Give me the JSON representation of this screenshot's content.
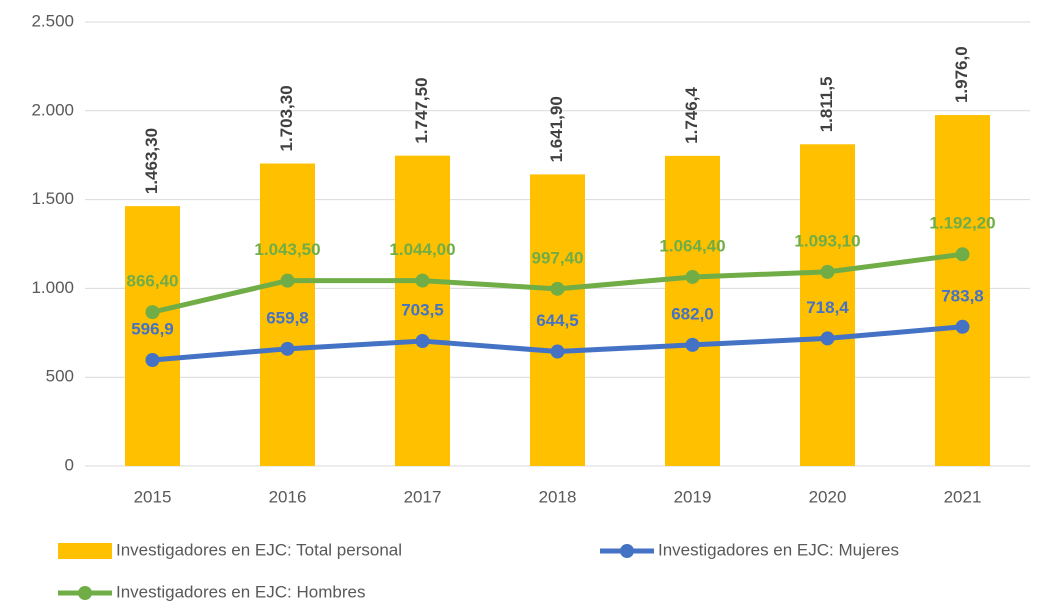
{
  "chart_data": {
    "type": "bar",
    "categories": [
      "2015",
      "2016",
      "2017",
      "2018",
      "2019",
      "2020",
      "2021"
    ],
    "series": [
      {
        "name": "Investigadores en EJC: Total personal",
        "type": "bar",
        "color": "#ffc000",
        "label_color": "#404040",
        "values": [
          1463.3,
          1703.3,
          1747.5,
          1641.9,
          1746.4,
          1811.5,
          1976.0
        ],
        "value_labels": [
          "1.463,30",
          "1.703,30",
          "1.747,50",
          "1.641,90",
          "1.746,4",
          "1.811,5",
          "1.976,0"
        ]
      },
      {
        "name": "Investigadores en EJC: Mujeres",
        "type": "line",
        "color": "#4472c4",
        "label_color": "#4472c4",
        "values": [
          596.9,
          659.8,
          703.5,
          644.5,
          682.0,
          718.4,
          783.8
        ],
        "value_labels": [
          "596,9",
          "659,8",
          "703,5",
          "644,5",
          "682,0",
          "718,4",
          "783,8"
        ]
      },
      {
        "name": "Investigadores en EJC: Hombres",
        "type": "line",
        "color": "#70ad47",
        "label_color": "#70ad47",
        "values": [
          866.4,
          1043.5,
          1044.0,
          997.4,
          1064.4,
          1093.1,
          1192.2
        ],
        "value_labels": [
          "866,40",
          "1.043,50",
          "1.044,00",
          "997,40",
          "1.064,40",
          "1.093,10",
          "1.192,20"
        ]
      }
    ],
    "ylim": [
      0,
      2500
    ],
    "yticks": [
      0,
      500,
      {
        "value": 1000,
        "label": "1.000"
      },
      {
        "value": 1500,
        "label": "1.500"
      },
      {
        "value": 2000,
        "label": "2.000"
      },
      {
        "value": 2500,
        "label": "2.500"
      }
    ],
    "grid": true
  }
}
